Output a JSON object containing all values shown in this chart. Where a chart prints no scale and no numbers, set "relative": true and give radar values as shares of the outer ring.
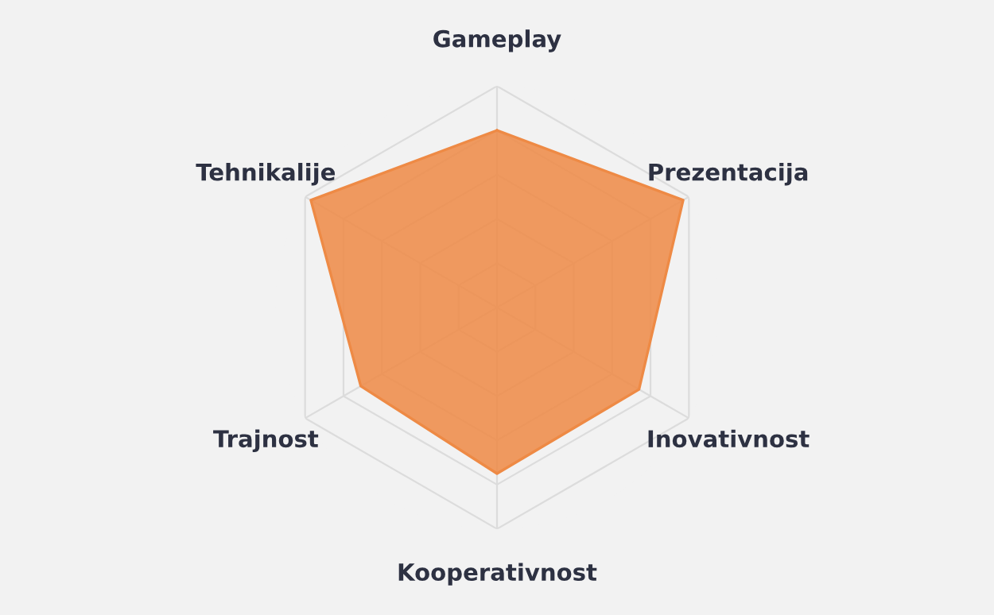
{
  "chart_data": {
    "type": "radar",
    "relative": true,
    "categories": [
      "Gameplay",
      "Prezentacija",
      "Inovativnost",
      "Kooperativnost",
      "Trajnost",
      "Tehnikalije"
    ],
    "series": [
      {
        "color": "#ee8a45",
        "values": [
          0.8,
          0.97,
          0.74,
          0.75,
          0.71,
          0.97
        ]
      }
    ],
    "grid": true
  }
}
